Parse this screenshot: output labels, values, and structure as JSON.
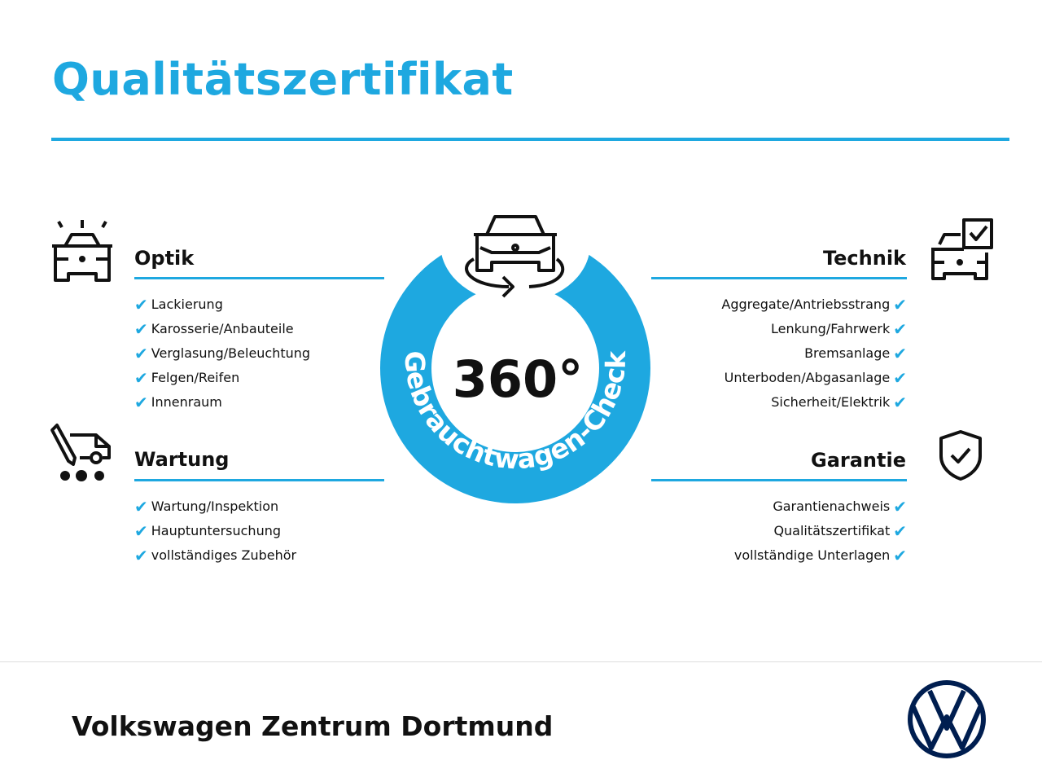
{
  "title": "Qualitätszertifikat",
  "center": {
    "big": "360°",
    "arc_text": "Gebrauchtwagen-Check"
  },
  "sections": {
    "optik": {
      "heading": "Optik",
      "items": [
        "Lackierung",
        "Karosserie/Anbauteile",
        "Verglasung/Beleuchtung",
        "Felgen/Reifen",
        "Innenraum"
      ]
    },
    "wartung": {
      "heading": "Wartung",
      "items": [
        "Wartung/Inspektion",
        "Hauptuntersuchung",
        "vollständiges Zubehör"
      ]
    },
    "technik": {
      "heading": "Technik",
      "items": [
        "Aggregate/Antriebsstrang",
        "Lenkung/Fahrwerk",
        "Bremsanlage",
        "Unterboden/Abgasanlage",
        "Sicherheit/Elektrik"
      ]
    },
    "garantie": {
      "heading": "Garantie",
      "items": [
        "Garantienachweis",
        "Qualitätszertifikat",
        "vollständige Unterlagen"
      ]
    }
  },
  "check_symbol": "✔",
  "footer": {
    "dealer": "Volkswagen Zentrum Dortmund",
    "logo": "VW"
  },
  "colors": {
    "accent": "#1ea8e0",
    "logo": "#001e50"
  }
}
